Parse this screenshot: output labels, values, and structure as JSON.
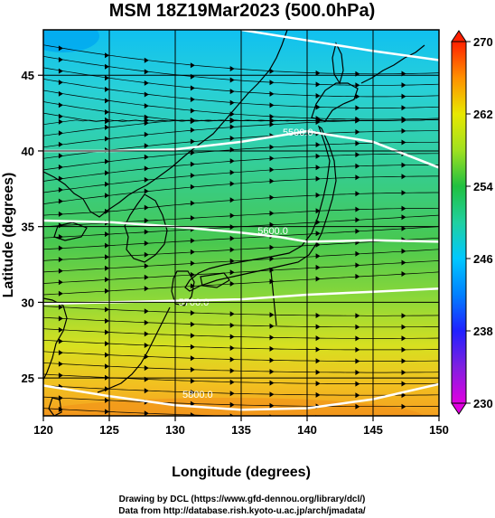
{
  "chart_data": {
    "type": "heatmap",
    "title": "MSM 18Z19Mar2023 (500.0hPa)",
    "xlabel": "Longitude (degrees)",
    "ylabel": "Latitude  (degrees)",
    "xlim": [
      120,
      150
    ],
    "ylim": [
      22.5,
      48
    ],
    "x_ticks": [
      120,
      125,
      130,
      135,
      140,
      145,
      150
    ],
    "y_ticks": [
      25,
      30,
      35,
      40,
      45
    ],
    "colorbar": {
      "min": 230,
      "max": 270,
      "ticks": [
        230,
        238,
        246,
        254,
        262,
        270
      ],
      "colors": [
        "#e000e0",
        "#2020ff",
        "#00c8ff",
        "#20c040",
        "#e8e800",
        "#ff2000"
      ]
    },
    "contours": [
      {
        "label": "5800.0",
        "points": [
          [
            120,
            24.5
          ],
          [
            125,
            23.8
          ],
          [
            130,
            23.2
          ],
          [
            135,
            22.9
          ],
          [
            140,
            23.0
          ],
          [
            145,
            23.6
          ],
          [
            150,
            24.6
          ]
        ]
      },
      {
        "label": "5700.0",
        "points": [
          [
            120,
            29.9
          ],
          [
            125,
            30.0
          ],
          [
            130,
            30.1
          ],
          [
            135,
            30.2
          ],
          [
            140,
            30.5
          ],
          [
            145,
            30.7
          ],
          [
            150,
            30.9
          ]
        ]
      },
      {
        "label": "5600.0",
        "points": [
          [
            120,
            35.4
          ],
          [
            125,
            35.3
          ],
          [
            130,
            35.0
          ],
          [
            135,
            34.6
          ],
          [
            138,
            34.3
          ],
          [
            140,
            34.0
          ],
          [
            145,
            34.1
          ],
          [
            150,
            34.0
          ]
        ]
      },
      {
        "label": "5500.0",
        "points": [
          [
            120,
            40.0
          ],
          [
            125,
            40.0
          ],
          [
            130,
            40.1
          ],
          [
            135,
            40.6
          ],
          [
            140,
            41.3
          ],
          [
            145,
            40.6
          ],
          [
            150,
            38.9
          ]
        ]
      },
      {
        "label": "",
        "points": [
          [
            135,
            48
          ],
          [
            140,
            47.3
          ],
          [
            145,
            46.6
          ],
          [
            150,
            46.0
          ]
        ]
      }
    ],
    "contour_labels_shown": [
      {
        "text": "5800.0",
        "lon": 131.7,
        "lat": 23.7
      },
      {
        "text": "5700.0",
        "lon": 131.4,
        "lat": 29.8
      },
      {
        "text": "5600.0",
        "lon": 137.4,
        "lat": 34.5
      },
      {
        "text": "5500.0",
        "lon": 139.3,
        "lat": 41.0
      }
    ],
    "grid": true
  },
  "credits": {
    "line1": "Drawing by DCL (https://www.gfd-dennou.org/library/dcl/)",
    "line2": "Data from http://database.rish.kyoto-u.ac.jp/arch/jmadata/"
  }
}
